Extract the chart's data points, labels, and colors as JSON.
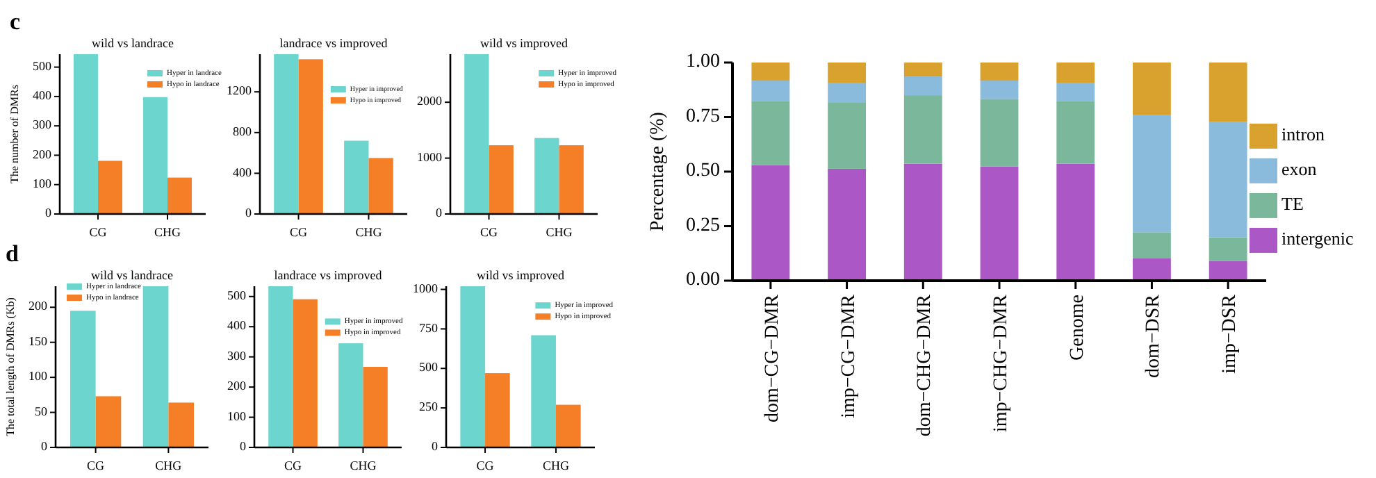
{
  "chart_data": [
    {
      "type": "bar",
      "title": "wild vs landrace",
      "ylabel": "The number of DMRs",
      "categories": [
        "CG",
        "CHG"
      ],
      "annotations": [
        "c"
      ],
      "ylim": [
        0,
        544
      ],
      "yticks": [
        0,
        100,
        200,
        300,
        400,
        500
      ],
      "legend": "top right",
      "series": [
        {
          "name": "Hyper in landrace",
          "color": "#6cd6ce",
          "values": [
            544,
            398
          ]
        },
        {
          "name": "Hypo in landrace",
          "color": "#f47f27",
          "values": [
            181,
            124
          ]
        }
      ]
    },
    {
      "type": "bar",
      "title": "landrace vs improved",
      "categories": [
        "CG",
        "CHG"
      ],
      "ylim": [
        0,
        1570
      ],
      "yticks": [
        0,
        400,
        800,
        1200
      ],
      "legend": "right",
      "series": [
        {
          "name": "Hyper in improved",
          "color": "#6cd6ce",
          "values": [
            1570,
            720
          ]
        },
        {
          "name": "Hypo in improved",
          "color": "#f47f27",
          "values": [
            1520,
            550
          ]
        }
      ]
    },
    {
      "type": "bar",
      "title": "wild vs improved",
      "categories": [
        "CG",
        "CHG"
      ],
      "ylim": [
        0,
        2860
      ],
      "yticks": [
        0,
        1000,
        2000
      ],
      "legend": "top right",
      "series": [
        {
          "name": "Hyper in improved",
          "color": "#6cd6ce",
          "values": [
            2860,
            1360
          ]
        },
        {
          "name": "Hypo in improved",
          "color": "#f47f27",
          "values": [
            1230,
            1230
          ]
        }
      ]
    },
    {
      "type": "bar",
      "title": "wild vs landrace",
      "ylabel": "The total length of DMRs (Kb)",
      "categories": [
        "CG",
        "CHG"
      ],
      "annotations": [
        "d"
      ],
      "ylim": [
        0,
        230
      ],
      "yticks": [
        0,
        50,
        100,
        150,
        200
      ],
      "legend": "top left",
      "series": [
        {
          "name": "Hyper in landrace",
          "color": "#6cd6ce",
          "values": [
            195,
            230
          ]
        },
        {
          "name": "Hypo in landrace",
          "color": "#f47f27",
          "values": [
            73,
            64
          ]
        }
      ]
    },
    {
      "type": "bar",
      "title": "landrace vs improved",
      "categories": [
        "CG",
        "CHG"
      ],
      "ylim": [
        0,
        534
      ],
      "yticks": [
        0,
        100,
        200,
        300,
        400,
        500
      ],
      "legend": "right",
      "series": [
        {
          "name": "Hyper in improved",
          "color": "#6cd6ce",
          "values": [
            534,
            345
          ]
        },
        {
          "name": "Hypo in improved",
          "color": "#f47f27",
          "values": [
            491,
            267
          ]
        }
      ]
    },
    {
      "type": "bar",
      "title": "wild vs improved",
      "categories": [
        "CG",
        "CHG"
      ],
      "ylim": [
        0,
        1020
      ],
      "yticks": [
        0,
        250,
        500,
        750,
        1000
      ],
      "legend": "top right",
      "series": [
        {
          "name": "Hyper in improved",
          "color": "#6cd6ce",
          "values": [
            1020,
            710
          ]
        },
        {
          "name": "Hypo in improved",
          "color": "#f47f27",
          "values": [
            470,
            270
          ]
        }
      ]
    },
    {
      "type": "bar",
      "stacked": true,
      "ylabel": "Percentage (%)",
      "categories": [
        "dom−CG−DMR",
        "imp−CG−DMR",
        "dom−CHG−DMR",
        "imp−CHG−DMR",
        "Genome",
        "dom−DSR",
        "imp−DSR"
      ],
      "ylim": [
        0,
        1
      ],
      "yticks": [
        {
          "value": 0,
          "label": "0.00"
        },
        {
          "value": 0.25,
          "label": "0.25"
        },
        {
          "value": 0.5,
          "label": "0.50"
        },
        {
          "value": 0.75,
          "label": "0.75"
        },
        {
          "value": 1,
          "label": "1.00"
        }
      ],
      "legend": "right",
      "series": [
        {
          "name": "intergenic",
          "color": "#ab57c5",
          "values": [
            0.53,
            0.513,
            0.536,
            0.523,
            0.536,
            0.104,
            0.091
          ]
        },
        {
          "name": "TE",
          "color": "#7bb89b",
          "values": [
            0.294,
            0.305,
            0.314,
            0.31,
            0.288,
            0.118,
            0.108
          ]
        },
        {
          "name": "exon",
          "color": "#8abbdc",
          "values": [
            0.093,
            0.087,
            0.086,
            0.084,
            0.081,
            0.539,
            0.53
          ]
        },
        {
          "name": "intron",
          "color": "#d9a22e",
          "values": [
            0.083,
            0.095,
            0.064,
            0.083,
            0.095,
            0.239,
            0.271
          ]
        }
      ]
    }
  ]
}
